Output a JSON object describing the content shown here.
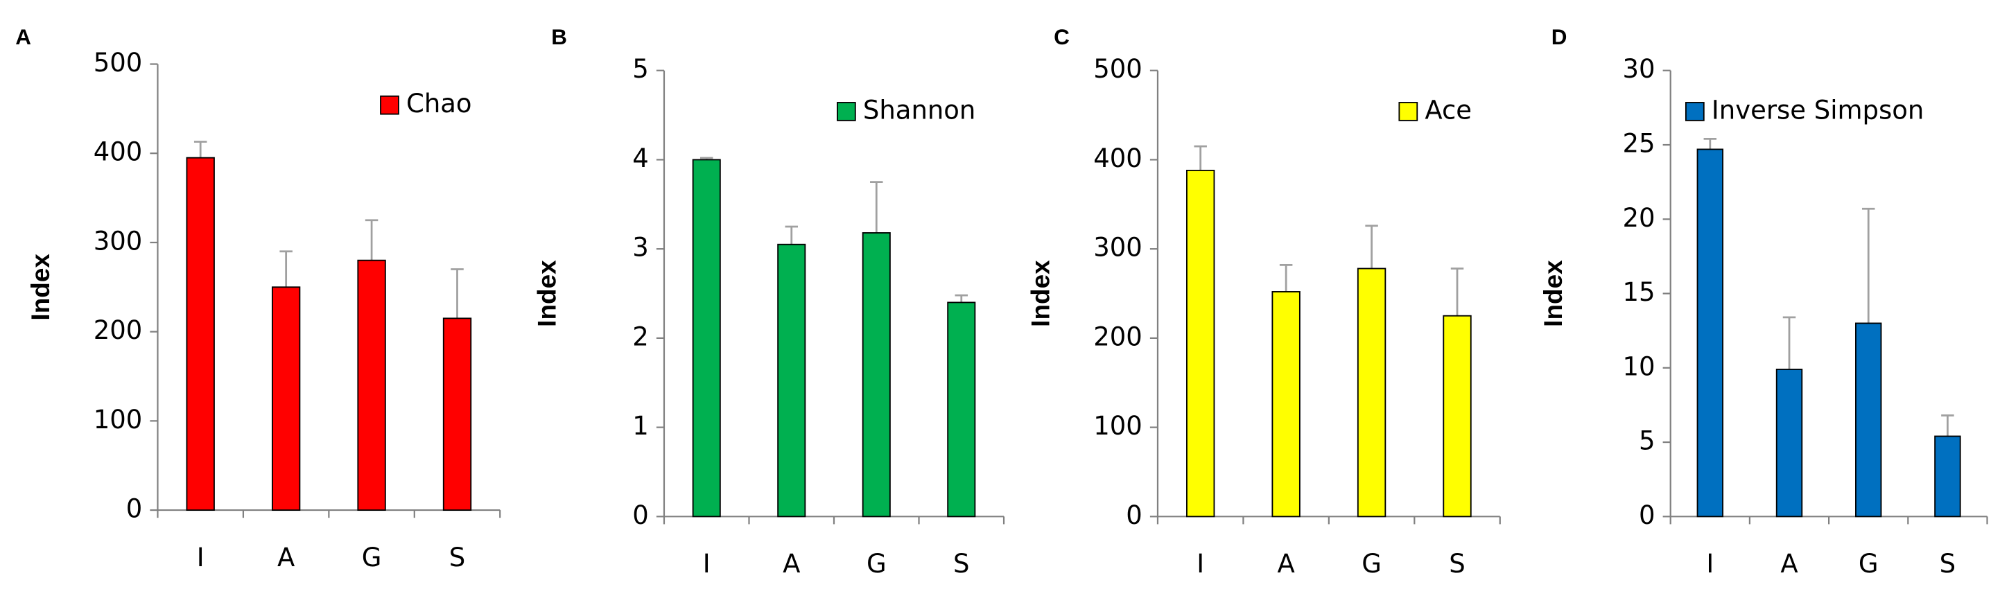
{
  "chart_data": [
    {
      "type": "bar",
      "label": "A",
      "ylabel": "Index",
      "categories": [
        "I",
        "A",
        "G",
        "S"
      ],
      "series": [
        {
          "name": "Chao",
          "color": "#ff0000",
          "values": [
            395,
            250,
            280,
            215
          ],
          "errors": [
            18,
            40,
            45,
            55
          ]
        }
      ],
      "ylim": [
        0,
        500
      ],
      "yticks": [
        0,
        100,
        200,
        300,
        400,
        500
      ],
      "legend": "upper right"
    },
    {
      "type": "bar",
      "label": "B",
      "ylabel": "Index",
      "categories": [
        "I",
        "A",
        "G",
        "S"
      ],
      "series": [
        {
          "name": "Shannon",
          "color": "#00b050",
          "values": [
            4.0,
            3.05,
            3.18,
            2.4
          ],
          "errors": [
            0.02,
            0.2,
            0.57,
            0.08
          ]
        }
      ],
      "ylim": [
        0,
        5
      ],
      "yticks": [
        0,
        1,
        2,
        3,
        4,
        5
      ],
      "legend": "upper right"
    },
    {
      "type": "bar",
      "label": "C",
      "ylabel": "Index",
      "categories": [
        "I",
        "A",
        "G",
        "S"
      ],
      "series": [
        {
          "name": "Ace",
          "color": "#ffff00",
          "values": [
            388,
            252,
            278,
            225
          ],
          "errors": [
            27,
            30,
            48,
            53
          ]
        }
      ],
      "ylim": [
        0,
        500
      ],
      "yticks": [
        0,
        100,
        200,
        300,
        400,
        500
      ],
      "legend": "upper right"
    },
    {
      "type": "bar",
      "label": "D",
      "ylabel": "Index",
      "categories": [
        "I",
        "A",
        "G",
        "S"
      ],
      "series": [
        {
          "name": "Inverse Simpson",
          "color": "#0070c0",
          "values": [
            24.7,
            9.9,
            13.0,
            5.4
          ],
          "errors": [
            0.7,
            3.5,
            7.7,
            1.4
          ]
        }
      ],
      "ylim": [
        0,
        30
      ],
      "yticks": [
        0,
        5,
        10,
        15,
        20,
        25,
        30
      ],
      "legend": "upper left"
    }
  ]
}
